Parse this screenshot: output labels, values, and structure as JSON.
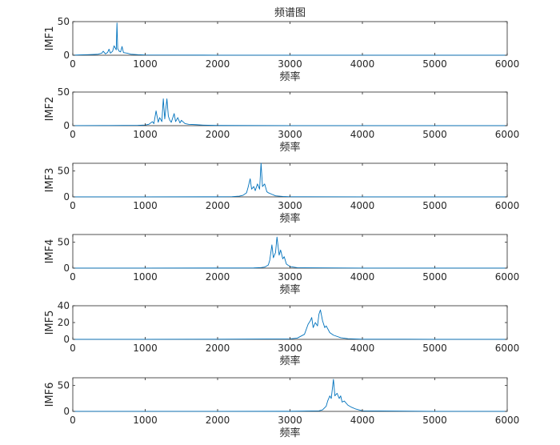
{
  "figure": {
    "title": "频谱图"
  },
  "colors": {
    "line": "#0072BD",
    "axes": "#262626",
    "background": "#ffffff"
  },
  "chart_data": [
    {
      "type": "line",
      "xlabel": "频率",
      "ylabel": "IMF1",
      "xlim": [
        0,
        6000
      ],
      "ylim": [
        0,
        50
      ],
      "xticks": [
        0,
        1000,
        2000,
        3000,
        4000,
        5000,
        6000
      ],
      "yticks": [
        0,
        50
      ],
      "grid": false,
      "x": [
        0,
        100,
        200,
        300,
        350,
        400,
        420,
        450,
        480,
        500,
        520,
        550,
        570,
        600,
        610,
        620,
        640,
        660,
        680,
        700,
        750,
        800,
        900,
        1000,
        1500,
        2000,
        3000,
        4000,
        5000,
        6000
      ],
      "y": [
        0,
        0.5,
        0.8,
        1.2,
        1.5,
        3,
        6,
        2,
        4,
        9,
        3,
        6,
        14,
        8,
        48,
        10,
        6,
        5,
        13,
        4,
        3,
        1.5,
        0.8,
        0.4,
        0.2,
        0.1,
        0.1,
        0.1,
        0.1,
        0.1
      ]
    },
    {
      "type": "line",
      "xlabel": "频率",
      "ylabel": "IMF2",
      "xlim": [
        0,
        6000
      ],
      "ylim": [
        0,
        50
      ],
      "xticks": [
        0,
        1000,
        2000,
        3000,
        4000,
        5000,
        6000
      ],
      "yticks": [
        0,
        50
      ],
      "grid": false,
      "x": [
        0,
        500,
        900,
        1000,
        1050,
        1100,
        1120,
        1150,
        1180,
        1200,
        1230,
        1250,
        1270,
        1300,
        1320,
        1340,
        1360,
        1400,
        1420,
        1450,
        1480,
        1500,
        1550,
        1600,
        1700,
        1800,
        2000,
        3000,
        4000,
        5000,
        6000
      ],
      "y": [
        0.1,
        0.2,
        0.5,
        1,
        2,
        6,
        3,
        22,
        5,
        12,
        6,
        40,
        10,
        40,
        14,
        8,
        5,
        18,
        6,
        12,
        4,
        8,
        3,
        2,
        1.5,
        0.8,
        0.3,
        0.1,
        0.1,
        0.1,
        0.1
      ]
    },
    {
      "type": "line",
      "xlabel": "频率",
      "ylabel": "IMF3",
      "xlim": [
        0,
        6000
      ],
      "ylim": [
        0,
        65
      ],
      "xticks": [
        0,
        1000,
        2000,
        3000,
        4000,
        5000,
        6000
      ],
      "yticks": [
        0,
        50
      ],
      "grid": false,
      "x": [
        0,
        1000,
        2000,
        2200,
        2300,
        2350,
        2400,
        2420,
        2450,
        2470,
        2500,
        2520,
        2550,
        2580,
        2600,
        2620,
        2650,
        2680,
        2700,
        2750,
        2800,
        2900,
        3000,
        4000,
        5000,
        6000
      ],
      "y": [
        0.1,
        0.1,
        0.2,
        0.5,
        1.5,
        3,
        8,
        18,
        35,
        15,
        20,
        12,
        25,
        15,
        65,
        20,
        25,
        10,
        8,
        5,
        2,
        0.8,
        0.3,
        0.1,
        0.1,
        0.1
      ]
    },
    {
      "type": "line",
      "xlabel": "频率",
      "ylabel": "IMF4",
      "xlim": [
        0,
        6000
      ],
      "ylim": [
        0,
        65
      ],
      "xticks": [
        0,
        1000,
        2000,
        3000,
        4000,
        5000,
        6000
      ],
      "yticks": [
        0,
        50
      ],
      "grid": false,
      "x": [
        0,
        1000,
        2000,
        2500,
        2600,
        2650,
        2700,
        2720,
        2750,
        2770,
        2800,
        2820,
        2850,
        2870,
        2900,
        2920,
        2950,
        3000,
        3100,
        4000,
        5000,
        6000
      ],
      "y": [
        0.1,
        0.1,
        0.2,
        0.4,
        1,
        2,
        6,
        15,
        45,
        20,
        30,
        60,
        25,
        35,
        18,
        22,
        8,
        3,
        0.8,
        0.1,
        0.1,
        0.1
      ]
    },
    {
      "type": "line",
      "xlabel": "频率",
      "ylabel": "IMF5",
      "xlim": [
        0,
        6000
      ],
      "ylim": [
        0,
        40
      ],
      "xticks": [
        0,
        1000,
        2000,
        3000,
        4000,
        5000,
        6000
      ],
      "yticks": [
        0,
        20,
        40
      ],
      "grid": false,
      "x": [
        0,
        1000,
        2000,
        3000,
        3100,
        3200,
        3250,
        3280,
        3300,
        3320,
        3350,
        3380,
        3400,
        3420,
        3450,
        3480,
        3500,
        3550,
        3600,
        3700,
        3800,
        4000,
        5000,
        6000
      ],
      "y": [
        0.1,
        0.1,
        0.2,
        0.5,
        1.5,
        6,
        18,
        22,
        26,
        14,
        20,
        16,
        30,
        35,
        22,
        14,
        16,
        8,
        5,
        2,
        0.8,
        0.2,
        0.1,
        0.1
      ]
    },
    {
      "type": "line",
      "xlabel": "频率",
      "ylabel": "IMF6",
      "xlim": [
        0,
        6000
      ],
      "ylim": [
        0,
        65
      ],
      "xticks": [
        0,
        1000,
        2000,
        3000,
        4000,
        5000,
        6000
      ],
      "yticks": [
        0,
        50
      ],
      "grid": false,
      "x": [
        0,
        1000,
        2000,
        3000,
        3400,
        3450,
        3500,
        3520,
        3550,
        3570,
        3600,
        3620,
        3650,
        3680,
        3700,
        3720,
        3750,
        3800,
        3850,
        3900,
        3950,
        4000,
        5000,
        6000
      ],
      "y": [
        0.1,
        0.1,
        0.1,
        0.2,
        1,
        3,
        10,
        20,
        30,
        25,
        62,
        30,
        35,
        25,
        30,
        18,
        20,
        12,
        8,
        5,
        3,
        1,
        0.1,
        0.1
      ]
    }
  ]
}
